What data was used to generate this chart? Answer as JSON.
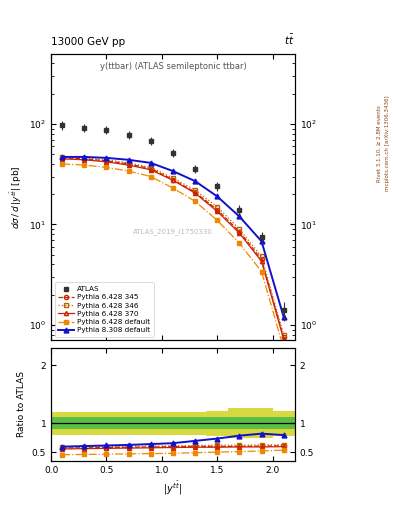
{
  "title_top": "13000 GeV pp",
  "title_right": "tt",
  "annotation": "y(ttbar) (ATLAS semileptonic ttbar)",
  "watermark": "ATLAS_2019_I1750330",
  "ylabel_ratio": "Ratio to ATLAS",
  "right_label1": "Rivet 3.1.10, ≥ 2.8M events",
  "right_label2": "mcplots.cern.ch [arXiv:1306.3436]",
  "x_centers": [
    0.1,
    0.3,
    0.5,
    0.7,
    0.9,
    1.1,
    1.3,
    1.5,
    1.7,
    1.9,
    2.1
  ],
  "x_edges": [
    0.0,
    0.2,
    0.4,
    0.6,
    0.8,
    1.0,
    1.2,
    1.4,
    1.6,
    1.8,
    2.0,
    2.2
  ],
  "atlas_y": [
    97,
    92,
    87,
    78,
    68,
    52,
    36,
    24,
    14,
    7.5,
    1.4
  ],
  "atlas_yerr_lo": [
    10,
    9,
    8,
    7,
    6,
    5,
    3.5,
    2.5,
    1.5,
    1.0,
    0.3
  ],
  "atlas_yerr_hi": [
    10,
    9,
    8,
    7,
    6,
    5,
    3.5,
    2.5,
    1.5,
    1.0,
    0.3
  ],
  "py6_345_y": [
    46,
    45,
    43,
    40,
    36,
    28,
    21,
    14,
    8.5,
    4.5,
    0.75
  ],
  "py6_346_y": [
    47,
    46,
    44,
    41,
    37,
    29,
    22,
    15,
    9.0,
    4.8,
    0.8
  ],
  "py6_370_y": [
    45,
    44,
    42,
    39,
    35,
    27.5,
    20.5,
    13.5,
    8.2,
    4.3,
    0.72
  ],
  "py6_def_y": [
    40,
    39,
    37,
    34,
    30,
    23,
    17,
    11,
    6.5,
    3.4,
    0.58
  ],
  "py8_def_y": [
    47,
    47,
    46,
    44,
    41,
    34,
    27,
    19,
    12,
    6.8,
    1.2
  ],
  "ratio_py6_345": [
    0.57,
    0.575,
    0.58,
    0.585,
    0.59,
    0.595,
    0.6,
    0.6,
    0.6,
    0.605,
    0.61
  ],
  "ratio_py6_346": [
    0.585,
    0.59,
    0.595,
    0.6,
    0.605,
    0.61,
    0.615,
    0.62,
    0.62,
    0.625,
    0.63
  ],
  "ratio_py6_370": [
    0.555,
    0.56,
    0.565,
    0.57,
    0.575,
    0.58,
    0.585,
    0.585,
    0.59,
    0.59,
    0.595
  ],
  "ratio_py6_def": [
    0.455,
    0.46,
    0.465,
    0.47,
    0.475,
    0.48,
    0.49,
    0.5,
    0.51,
    0.52,
    0.535
  ],
  "ratio_py8_def": [
    0.595,
    0.605,
    0.615,
    0.625,
    0.64,
    0.655,
    0.695,
    0.735,
    0.785,
    0.82,
    0.795
  ],
  "band_green_lo": [
    0.9,
    0.9,
    0.9,
    0.9,
    0.9,
    0.9,
    0.9,
    0.9,
    0.9,
    0.9,
    0.9
  ],
  "band_green_hi": [
    1.1,
    1.1,
    1.1,
    1.1,
    1.1,
    1.1,
    1.1,
    1.1,
    1.1,
    1.1,
    1.1
  ],
  "band_yellow_lo_vals": [
    0.8,
    0.8,
    0.8,
    0.8,
    0.8,
    0.8,
    0.8,
    0.78,
    0.75,
    0.75,
    0.78
  ],
  "band_yellow_hi_vals": [
    1.2,
    1.2,
    1.2,
    1.2,
    1.2,
    1.2,
    1.2,
    1.22,
    1.27,
    1.27,
    1.22
  ],
  "color_atlas": "#333333",
  "color_py6_345": "#cc2200",
  "color_py6_346": "#bb6600",
  "color_py6_370": "#cc2200",
  "color_py6_def": "#ee8800",
  "color_py8_def": "#1111cc",
  "color_green": "#44bb44",
  "color_yellow": "#cccc00",
  "xlim": [
    0.0,
    2.2
  ],
  "ylim_main": [
    0.7,
    500
  ],
  "ylim_ratio": [
    0.35,
    2.3
  ],
  "ratio_yticks": [
    0.5,
    1.0,
    2.0
  ],
  "ratio_yticklabels": [
    "0.5",
    "1",
    "2"
  ]
}
